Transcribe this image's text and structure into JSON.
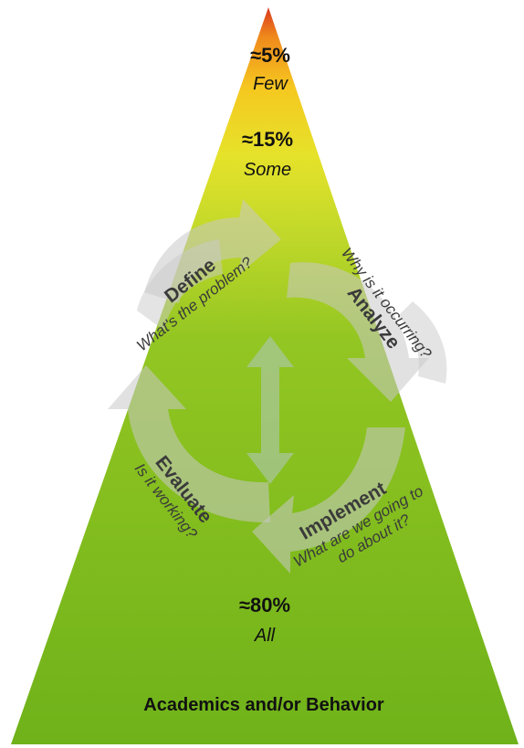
{
  "tiers": {
    "top": {
      "percent": "≈5%",
      "label": "Few"
    },
    "middle": {
      "percent": "≈15%",
      "label": "Some"
    },
    "bottom": {
      "percent": "≈80%",
      "label": "All"
    }
  },
  "cycle": {
    "define": {
      "title": "Define",
      "question": "What's the problem?"
    },
    "analyze": {
      "title": "Analyze",
      "question": "Why is it occurring?"
    },
    "implement": {
      "title": "Implement",
      "question_line1": "What are we going to",
      "question_line2": "do about it?"
    },
    "evaluate": {
      "title": "Evaluate",
      "question": "Is it working?"
    }
  },
  "base_label": "Academics and/or Behavior",
  "colors": {
    "apex": "#d9381e",
    "orange": "#f5a623",
    "yellow": "#e6e22a",
    "green": "#7dbb1e",
    "base_green": "#6fb21a",
    "arrow_gray": "#c9c9c9"
  }
}
